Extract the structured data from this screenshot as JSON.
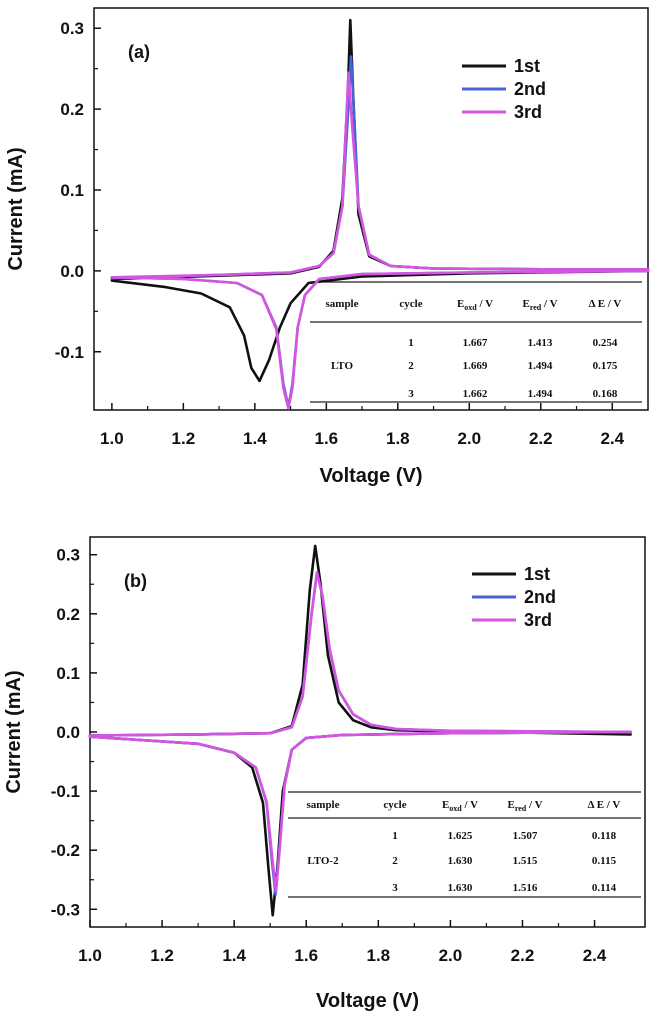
{
  "chart_data": [
    {
      "type": "line",
      "panel_label": "(a)",
      "xlabel": "Voltage (V)",
      "ylabel": "Current (mA)",
      "xlim": [
        0.95,
        2.5
      ],
      "ylim": [
        -0.172,
        0.325
      ],
      "x_ticks": [
        1.0,
        1.2,
        1.4,
        1.6,
        1.8,
        2.0,
        2.2,
        2.4
      ],
      "x_tick_labels": [
        "1.0",
        "1.2",
        "1.4",
        "1.6",
        "1.8",
        "2.0",
        "2.2",
        "2.4"
      ],
      "y_ticks": [
        -0.1,
        0.0,
        0.1,
        0.2,
        0.3
      ],
      "y_tick_labels": [
        "-0.1",
        "0.0",
        "0.1",
        "0.2",
        "0.3"
      ],
      "grid": false,
      "legend_position": "top-right",
      "series": [
        {
          "name": "1st",
          "color": "#111111",
          "anodic": {
            "x": [
              1.0,
              1.3,
              1.5,
              1.58,
              1.62,
              1.645,
              1.66,
              1.667,
              1.675,
              1.69,
              1.72,
              1.78,
              1.9,
              2.2,
              2.5
            ],
            "y": [
              -0.01,
              -0.006,
              -0.003,
              0.005,
              0.025,
              0.09,
              0.22,
              0.31,
              0.22,
              0.07,
              0.018,
              0.006,
              0.003,
              0.002,
              0.002
            ]
          },
          "cathodic": {
            "x": [
              2.5,
              2.0,
              1.7,
              1.55,
              1.5,
              1.47,
              1.44,
              1.413,
              1.39,
              1.37,
              1.33,
              1.25,
              1.15,
              1.0
            ],
            "y": [
              0.0,
              -0.003,
              -0.007,
              -0.015,
              -0.04,
              -0.07,
              -0.11,
              -0.136,
              -0.12,
              -0.08,
              -0.045,
              -0.028,
              -0.02,
              -0.012
            ]
          }
        },
        {
          "name": "2nd",
          "color": "#4a63d8",
          "anodic": {
            "x": [
              1.0,
              1.3,
              1.5,
              1.58,
              1.62,
              1.645,
              1.66,
              1.669,
              1.678,
              1.69,
              1.72,
              1.78,
              1.9,
              2.2,
              2.5
            ],
            "y": [
              -0.009,
              -0.005,
              -0.002,
              0.006,
              0.022,
              0.08,
              0.19,
              0.265,
              0.19,
              0.08,
              0.02,
              0.006,
              0.003,
              0.002,
              0.002
            ]
          },
          "cathodic": {
            "x": [
              2.5,
              2.0,
              1.7,
              1.58,
              1.54,
              1.52,
              1.505,
              1.494,
              1.48,
              1.46,
              1.42,
              1.35,
              1.2,
              1.0
            ],
            "y": [
              0.0,
              -0.002,
              -0.004,
              -0.01,
              -0.03,
              -0.07,
              -0.14,
              -0.168,
              -0.14,
              -0.07,
              -0.03,
              -0.015,
              -0.01,
              -0.008
            ]
          }
        },
        {
          "name": "3rd",
          "color": "#d455e0",
          "anodic": {
            "x": [
              1.0,
              1.3,
              1.5,
              1.58,
              1.62,
              1.645,
              1.655,
              1.662,
              1.672,
              1.69,
              1.72,
              1.78,
              1.9,
              2.2,
              2.5
            ],
            "y": [
              -0.008,
              -0.005,
              -0.002,
              0.006,
              0.022,
              0.08,
              0.18,
              0.245,
              0.18,
              0.08,
              0.02,
              0.006,
              0.003,
              0.002,
              0.002
            ]
          },
          "cathodic": {
            "x": [
              2.5,
              2.0,
              1.7,
              1.58,
              1.54,
              1.52,
              1.505,
              1.494,
              1.48,
              1.46,
              1.42,
              1.35,
              1.2,
              1.0
            ],
            "y": [
              0.0,
              -0.002,
              -0.004,
              -0.01,
              -0.03,
              -0.07,
              -0.145,
              -0.17,
              -0.145,
              -0.072,
              -0.03,
              -0.015,
              -0.01,
              -0.008
            ]
          }
        }
      ],
      "table": {
        "headers": [
          "sample",
          "cycle",
          "E_oxd / V",
          "E_red / V",
          "ΔE / V"
        ],
        "header_main": [
          "sample",
          "cycle",
          "E",
          "E",
          "Δ E / V"
        ],
        "header_sub": [
          "",
          "",
          "oxd",
          "red",
          ""
        ],
        "header_tail": [
          "",
          "",
          " / V",
          " / V",
          ""
        ],
        "sample": "LTO",
        "rows": [
          [
            "1",
            "1.667",
            "1.413",
            "0.254"
          ],
          [
            "2",
            "1.669",
            "1.494",
            "0.175"
          ],
          [
            "3",
            "1.662",
            "1.494",
            "0.168"
          ]
        ]
      }
    },
    {
      "type": "line",
      "panel_label": "(b)",
      "xlabel": "Voltage (V)",
      "ylabel": "Current (mA)",
      "xlim": [
        1.0,
        2.54
      ],
      "ylim": [
        -0.33,
        0.33
      ],
      "x_ticks": [
        1.0,
        1.2,
        1.4,
        1.6,
        1.8,
        2.0,
        2.2,
        2.4
      ],
      "x_tick_labels": [
        "1.0",
        "1.2",
        "1.4",
        "1.6",
        "1.8",
        "2.0",
        "2.2",
        "2.4"
      ],
      "y_ticks": [
        -0.3,
        -0.2,
        -0.1,
        0.0,
        0.1,
        0.2,
        0.3
      ],
      "y_tick_labels": [
        "-0.3",
        "-0.2",
        "-0.1",
        "0.0",
        "0.1",
        "0.2",
        "0.3"
      ],
      "grid": false,
      "legend_position": "top-right",
      "series": [
        {
          "name": "1st",
          "color": "#111111",
          "anodic": {
            "x": [
              1.0,
              1.3,
              1.5,
              1.56,
              1.59,
              1.61,
              1.625,
              1.64,
              1.66,
              1.69,
              1.73,
              1.78,
              1.85,
              2.0,
              2.5
            ],
            "y": [
              -0.006,
              -0.004,
              -0.002,
              0.01,
              0.08,
              0.24,
              0.315,
              0.25,
              0.13,
              0.05,
              0.02,
              0.008,
              0.003,
              0.001,
              -0.004
            ]
          },
          "cathodic": {
            "x": [
              2.5,
              2.0,
              1.7,
              1.6,
              1.56,
              1.535,
              1.52,
              1.507,
              1.495,
              1.48,
              1.45,
              1.4,
              1.3,
              1.0
            ],
            "y": [
              0.0,
              -0.002,
              -0.005,
              -0.01,
              -0.03,
              -0.1,
              -0.23,
              -0.31,
              -0.23,
              -0.12,
              -0.06,
              -0.035,
              -0.02,
              -0.008
            ]
          }
        },
        {
          "name": "2nd",
          "color": "#4a63d8",
          "anodic": {
            "x": [
              1.0,
              1.3,
              1.5,
              1.56,
              1.59,
              1.615,
              1.63,
              1.645,
              1.665,
              1.69,
              1.73,
              1.78,
              1.85,
              2.0,
              2.5
            ],
            "y": [
              -0.006,
              -0.004,
              -0.002,
              0.008,
              0.06,
              0.2,
              0.27,
              0.23,
              0.14,
              0.07,
              0.03,
              0.012,
              0.005,
              0.002,
              0.0
            ]
          },
          "cathodic": {
            "x": [
              2.5,
              2.0,
              1.7,
              1.6,
              1.56,
              1.54,
              1.525,
              1.515,
              1.505,
              1.49,
              1.46,
              1.4,
              1.3,
              1.0
            ],
            "y": [
              0.0,
              -0.002,
              -0.005,
              -0.01,
              -0.03,
              -0.09,
              -0.2,
              -0.275,
              -0.22,
              -0.12,
              -0.06,
              -0.035,
              -0.02,
              -0.008
            ]
          }
        },
        {
          "name": "3rd",
          "color": "#d455e0",
          "anodic": {
            "x": [
              1.0,
              1.3,
              1.5,
              1.56,
              1.59,
              1.615,
              1.63,
              1.645,
              1.665,
              1.69,
              1.73,
              1.78,
              1.85,
              2.0,
              2.5
            ],
            "y": [
              -0.006,
              -0.004,
              -0.002,
              0.008,
              0.06,
              0.2,
              0.27,
              0.23,
              0.14,
              0.07,
              0.03,
              0.012,
              0.005,
              0.002,
              0.0
            ]
          },
          "cathodic": {
            "x": [
              2.5,
              2.0,
              1.7,
              1.6,
              1.56,
              1.54,
              1.526,
              1.516,
              1.506,
              1.49,
              1.46,
              1.4,
              1.3,
              1.0
            ],
            "y": [
              0.0,
              -0.002,
              -0.005,
              -0.01,
              -0.03,
              -0.09,
              -0.2,
              -0.27,
              -0.215,
              -0.118,
              -0.06,
              -0.035,
              -0.02,
              -0.008
            ]
          }
        }
      ],
      "table": {
        "headers": [
          "sample",
          "cycle",
          "E_oxd / V",
          "E_red / V",
          "ΔE / V"
        ],
        "header_main": [
          "sample",
          "cycle",
          "E",
          "E",
          "Δ E / V"
        ],
        "header_sub": [
          "",
          "",
          "oxd",
          "red",
          ""
        ],
        "header_tail": [
          "",
          "",
          " / V",
          " / V",
          ""
        ],
        "sample": "LTO-2",
        "rows": [
          [
            "1",
            "1.625",
            "1.507",
            "0.118"
          ],
          [
            "2",
            "1.630",
            "1.515",
            "0.115"
          ],
          [
            "3",
            "1.630",
            "1.516",
            "0.114"
          ]
        ]
      }
    }
  ]
}
